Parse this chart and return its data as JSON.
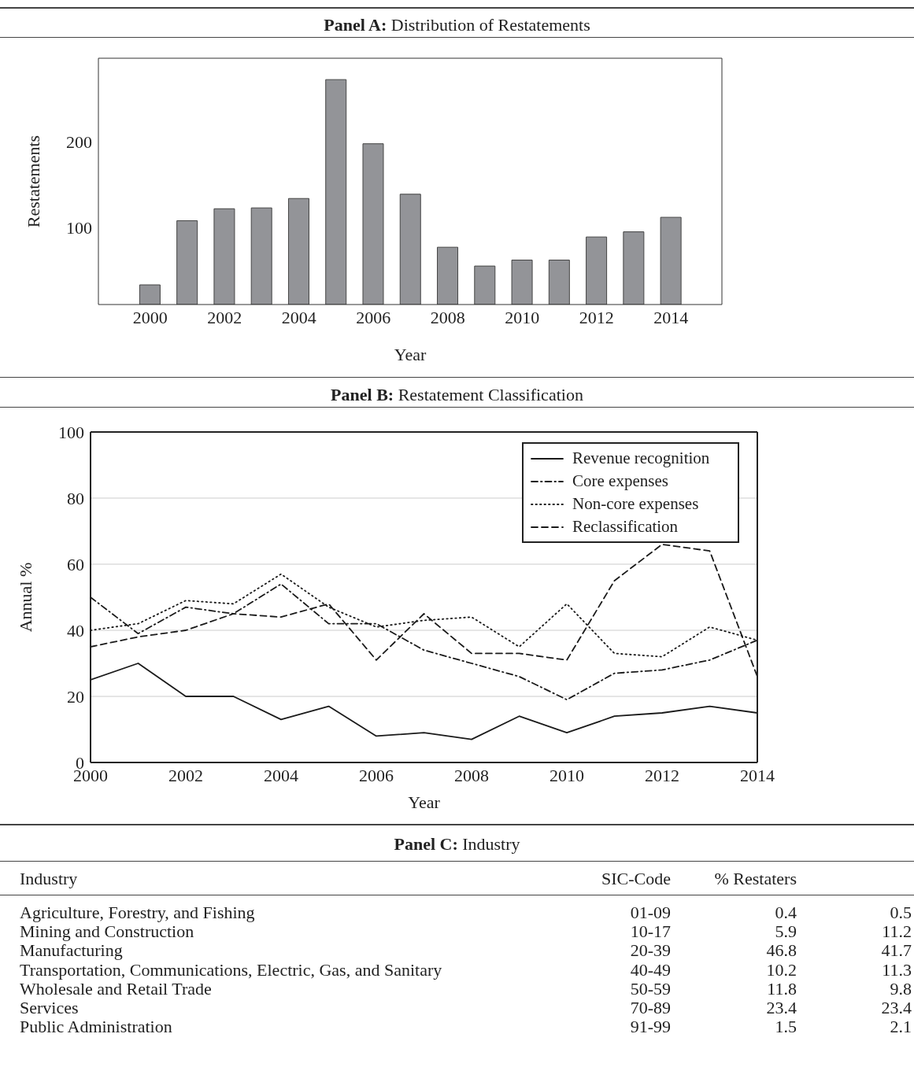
{
  "chart_data": [
    {
      "type": "bar",
      "title": "Panel A: Distribution of Restatements",
      "xlabel": "Year",
      "ylabel": "Restatements",
      "categories": [
        "2000",
        null,
        "2002",
        null,
        "2004",
        null,
        "2006",
        null,
        "2008",
        null,
        "2010",
        null,
        "2012",
        null,
        "2014"
      ],
      "values": [
        33,
        108,
        122,
        123,
        134,
        273,
        198,
        139,
        77,
        55,
        62,
        62,
        89,
        95,
        112
      ],
      "color": "#939498",
      "ylim": [
        10,
        298
      ],
      "yticks": [
        100,
        200
      ]
    },
    {
      "type": "line",
      "title": "Panel B: Restatement Classification",
      "xlabel": "Year",
      "ylabel": "Annual %",
      "x": [
        2000,
        2001,
        2002,
        2003,
        2004,
        2005,
        2006,
        2007,
        2008,
        2009,
        2010,
        2011,
        2012,
        2013,
        2014
      ],
      "series": [
        {
          "name": "Revenue recognition",
          "color": "#1a1a1a",
          "line_style": "solid",
          "values": [
            25,
            30,
            20,
            20,
            13,
            17,
            8,
            9,
            7,
            14,
            9,
            14,
            15,
            17,
            15
          ]
        },
        {
          "name": "Core expenses",
          "color": "#1a1a1a",
          "line_style": "dashdot",
          "values": [
            50,
            39,
            47,
            45,
            54,
            42,
            42,
            34,
            30,
            26,
            19,
            27,
            28,
            31,
            37
          ]
        },
        {
          "name": "Non-core expenses",
          "color": "#1a1a1a",
          "line_style": "dotted",
          "values": [
            40,
            42,
            49,
            48,
            57,
            47,
            41,
            43,
            44,
            35,
            48,
            33,
            32,
            41,
            37
          ]
        },
        {
          "name": "Reclassification",
          "color": "#1a1a1a",
          "line_style": "dashed",
          "values": [
            35,
            38,
            40,
            45,
            44,
            48,
            31,
            45,
            33,
            33,
            31,
            55,
            66,
            64,
            26
          ]
        }
      ],
      "xlim": [
        2000,
        2014
      ],
      "xticks": [
        2000,
        2002,
        2004,
        2006,
        2008,
        2010,
        2012,
        2014
      ],
      "ylim": [
        0,
        100
      ],
      "yticks": [
        0,
        20,
        40,
        60,
        80,
        100
      ],
      "grid": "y",
      "legend": "top right"
    },
    {
      "type": "other",
      "title": "Panel C: Industry",
      "categories": [
        "Agriculture, Forestry, and Fishing",
        "Mining and Construction",
        "Manufacturing",
        "Transportation, Communications, Electric, Gas, and Sanitary",
        "Wholesale and Retail Trade",
        "Services",
        "Public Administration"
      ],
      "annotations": [
        "Industry",
        "SIC-Code",
        "% Restaters",
        "01-09",
        "0.4",
        "0.5",
        "10-17",
        "5.9",
        "11.2",
        "20-39",
        "46.8",
        "41.7",
        "40-49",
        "10.2",
        "11.3",
        "50-59",
        "11.8",
        "9.8",
        "70-89",
        "23.4",
        "23.4",
        "91-99",
        "1.5",
        "2.1"
      ]
    }
  ]
}
